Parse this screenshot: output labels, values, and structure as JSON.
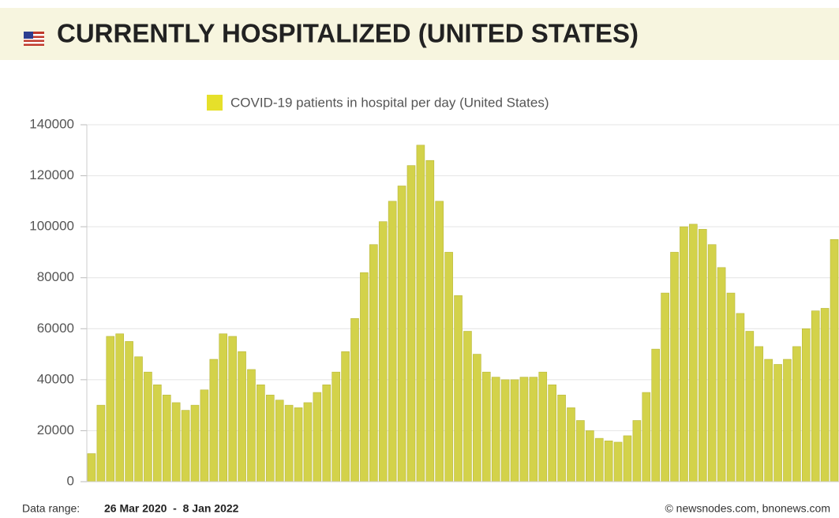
{
  "chart_data": {
    "type": "bar",
    "title": "CURRENTLY HOSPITALIZED (UNITED STATES)",
    "series": [
      {
        "name": "COVID-19 patients in hospital per day (United States)",
        "color": "#d3d24a",
        "values": [
          11000,
          30000,
          57000,
          58000,
          55000,
          49000,
          43000,
          38000,
          34000,
          31000,
          28000,
          30000,
          36000,
          48000,
          58000,
          57000,
          51000,
          44000,
          38000,
          34000,
          32000,
          30000,
          29000,
          31000,
          35000,
          38000,
          43000,
          51000,
          64000,
          82000,
          93000,
          102000,
          110000,
          116000,
          124000,
          132000,
          126000,
          110000,
          90000,
          73000,
          59000,
          50000,
          43000,
          41000,
          40000,
          40000,
          41000,
          41000,
          43000,
          38000,
          34000,
          29000,
          24000,
          20000,
          17000,
          16000,
          15500,
          18000,
          24000,
          35000,
          52000,
          74000,
          90000,
          100000,
          101000,
          99000,
          93000,
          84000,
          74000,
          66000,
          59000,
          53000,
          48000,
          46000,
          48000,
          53000,
          60000,
          67000,
          68000,
          95000
        ]
      }
    ],
    "categories": [
      null,
      null,
      null,
      null,
      null,
      null,
      null,
      null,
      null,
      null,
      null,
      null,
      null,
      null,
      null,
      null,
      null,
      null,
      null,
      null,
      null,
      null,
      null,
      null,
      null,
      null,
      null,
      null,
      null,
      null,
      null,
      null,
      null,
      null,
      null,
      null,
      null,
      null,
      null,
      null,
      null,
      null,
      null,
      null,
      null,
      null,
      null,
      null,
      null,
      null,
      null,
      null,
      null,
      null,
      null,
      null,
      null,
      null,
      null,
      null,
      null,
      null,
      null,
      null,
      null,
      null,
      null,
      null,
      null,
      null,
      null,
      null,
      null,
      null,
      null,
      null,
      null,
      null,
      null,
      null
    ],
    "ylim": [
      0,
      140000
    ],
    "yticks": [
      0,
      20000,
      40000,
      60000,
      80000,
      100000,
      120000,
      140000
    ],
    "grid": true,
    "legend": "top"
  },
  "footer": {
    "range_label": "Data range:",
    "range": "26 Mar 2020  -  8 Jan 2022",
    "credit": "© newsnodes.com, bnonews.com"
  }
}
